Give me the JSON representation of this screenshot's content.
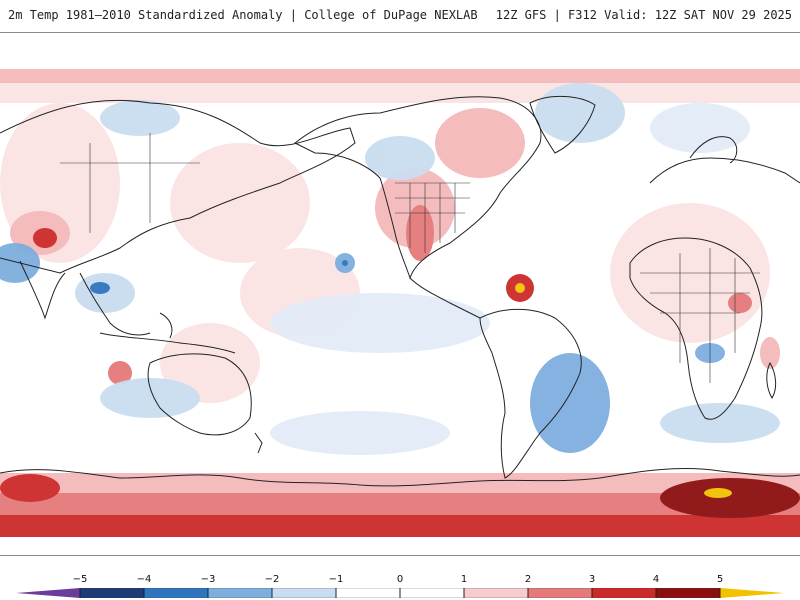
{
  "header": {
    "title_left": "2m Temp 1981–2010 Standardized Anomaly | College of DuPage NEXLAB",
    "title_right": "12Z GFS | F312 Valid: 12Z SAT NOV 29 2025"
  },
  "colorbar": {
    "tick_labels": [
      "−5",
      "−4",
      "−3",
      "−2",
      "−1",
      "0",
      "1",
      "2",
      "3",
      "4",
      "5"
    ],
    "tick_values": [
      -5,
      -4,
      -3,
      -2,
      -1,
      0,
      1,
      2,
      3,
      4,
      5
    ],
    "colors": [
      "#6a3d9a",
      "#1f3a78",
      "#2e74bf",
      "#7eaede",
      "#c9ddf0",
      "#ffffff",
      "#ffffff",
      "#f6cccc",
      "#e57a7a",
      "#cc2a2a",
      "#8c0f0f",
      "#f2c200"
    ]
  },
  "map": {
    "projection": "cylindrical",
    "land_outline_color": "#222222",
    "warm_colors": [
      "#fbe3e3",
      "#f4b9b9",
      "#e57a7a",
      "#cc2a2a",
      "#8c0f0f"
    ],
    "cool_colors": [
      "#e3ecf7",
      "#c9ddf0",
      "#7eaede",
      "#2e74bf"
    ]
  }
}
